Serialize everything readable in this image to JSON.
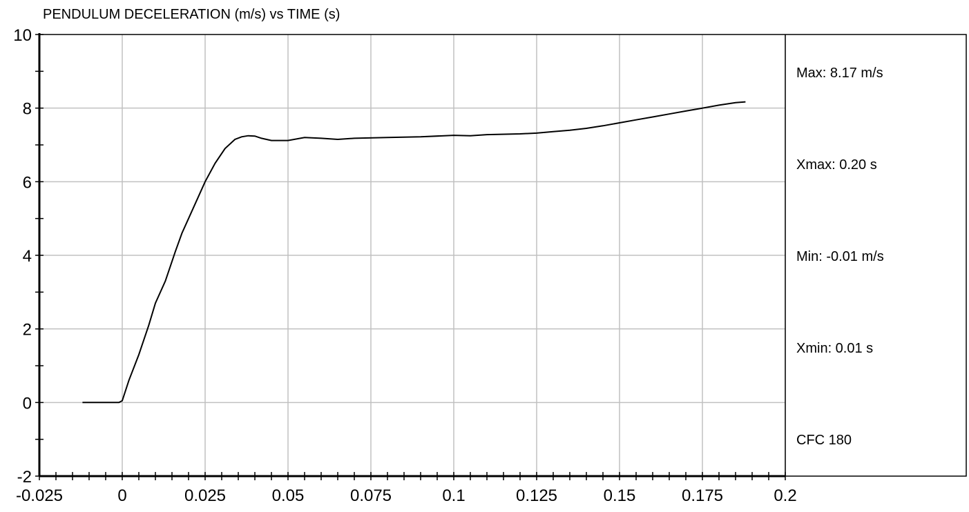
{
  "chart_data": {
    "type": "line",
    "title": "PENDULUM DECELERATION (m/s) vs TIME (s)",
    "xlim": [
      -0.025,
      0.2
    ],
    "ylim": [
      -2,
      10
    ],
    "x_ticks": [
      -0.025,
      0,
      0.025,
      0.05,
      0.075,
      0.1,
      0.125,
      0.15,
      0.175,
      0.2
    ],
    "x_tick_labels": [
      "-0.025",
      "0",
      "0.025",
      "0.05",
      "0.075",
      "0.1",
      "0.125",
      "0.15",
      "0.175",
      "0.2"
    ],
    "y_ticks": [
      -2,
      0,
      2,
      4,
      6,
      8,
      10
    ],
    "y_tick_labels": [
      "-2",
      "0",
      "2",
      "4",
      "6",
      "8",
      "10"
    ],
    "grid": true,
    "series": [
      {
        "x": [
          -0.012,
          -0.005,
          -0.001,
          0,
          0.002,
          0.005,
          0.008,
          0.01,
          0.013,
          0.016,
          0.018,
          0.02,
          0.023,
          0.025,
          0.028,
          0.031,
          0.034,
          0.036,
          0.038,
          0.04,
          0.042,
          0.045,
          0.05,
          0.055,
          0.06,
          0.065,
          0.07,
          0.08,
          0.09,
          0.1,
          0.105,
          0.11,
          0.12,
          0.125,
          0.13,
          0.135,
          0.14,
          0.145,
          0.15,
          0.155,
          0.16,
          0.165,
          0.17,
          0.175,
          0.18,
          0.185,
          0.188
        ],
        "y": [
          0,
          0,
          0,
          0.05,
          0.6,
          1.3,
          2.1,
          2.7,
          3.3,
          4.1,
          4.6,
          5.0,
          5.6,
          6.0,
          6.5,
          6.9,
          7.15,
          7.22,
          7.25,
          7.24,
          7.18,
          7.12,
          7.12,
          7.2,
          7.18,
          7.15,
          7.18,
          7.2,
          7.22,
          7.26,
          7.25,
          7.28,
          7.3,
          7.32,
          7.36,
          7.4,
          7.45,
          7.52,
          7.6,
          7.68,
          7.76,
          7.84,
          7.92,
          8.0,
          8.08,
          8.15,
          8.17
        ]
      }
    ],
    "stats": [
      "Max: 8.17 m/s",
      "Xmax: 0.20 s",
      "Min: -0.01 m/s",
      "Xmin: 0.01 s",
      "CFC 180"
    ],
    "colors": {
      "line": "#000000",
      "grid": "#c0c0c0",
      "background": "#ffffff"
    }
  }
}
